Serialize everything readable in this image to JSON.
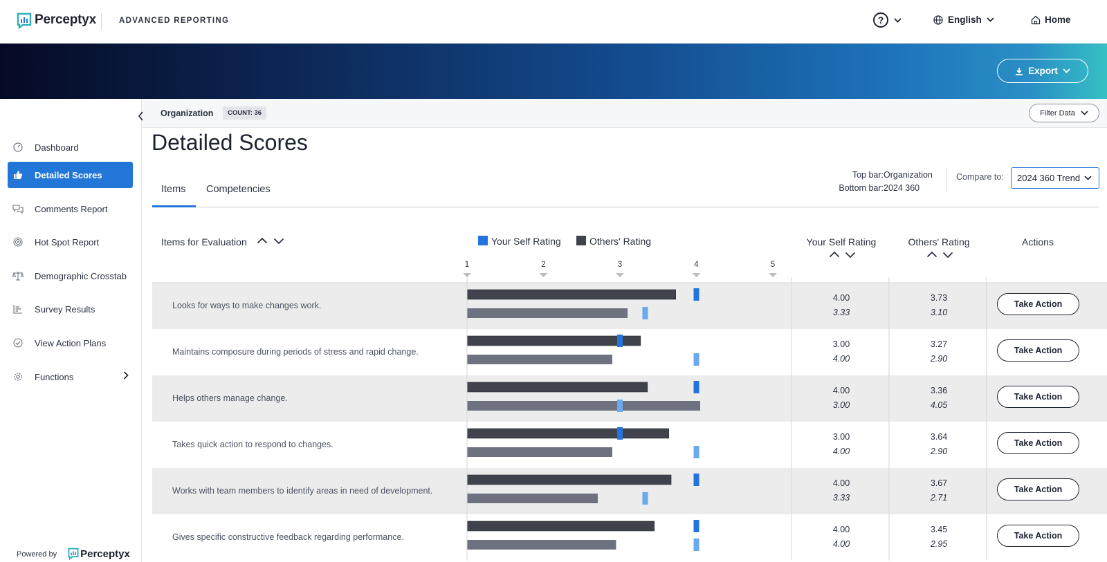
{
  "header": {
    "brand": "Perceptyx",
    "app_name": "ADVANCED REPORTING",
    "language": "English",
    "home": "Home"
  },
  "banner": {
    "export_label": "Export"
  },
  "sidebar": {
    "items": [
      {
        "label": "Dashboard",
        "icon": "gauge-icon",
        "active": false
      },
      {
        "label": "Detailed Scores",
        "icon": "thumbs-up-icon",
        "active": true
      },
      {
        "label": "Comments Report",
        "icon": "chat-bubbles-icon",
        "active": false
      },
      {
        "label": "Hot Spot Report",
        "icon": "target-icon",
        "active": false
      },
      {
        "label": "Demographic Crosstab",
        "icon": "scales-icon",
        "active": false
      },
      {
        "label": "Survey Results",
        "icon": "bar-list-icon",
        "active": false
      },
      {
        "label": "View Action Plans",
        "icon": "check-circle-icon",
        "active": false
      },
      {
        "label": "Functions",
        "icon": "gear-icon",
        "active": false
      }
    ],
    "powered_by": "Powered by",
    "powered_brand": "Perceptyx"
  },
  "filterbar": {
    "org_label": "Organization",
    "count": "COUNT: 36",
    "filter_label": "Filter Data"
  },
  "main": {
    "title": "Detailed Scores",
    "tabs": [
      {
        "label": "Items"
      },
      {
        "label": "Competencies"
      }
    ],
    "top_bar_label": "Top bar:",
    "top_bar_value": "Organization",
    "bottom_bar_label": "Bottom bar:",
    "bottom_bar_value": "2024 360",
    "compare_label": "Compare to:",
    "compare_value": "2024 360 Trend"
  },
  "table": {
    "items_header": "Items for Evaluation",
    "legend_self": "Your Self Rating",
    "legend_others": "Others' Rating",
    "col_self": "Your Self Rating",
    "col_others": "Others' Rating",
    "col_actions": "Actions",
    "action_label": "Take Action"
  },
  "colors": {
    "self_current": "#2474dd",
    "self_compare": "#6aa9ec",
    "others_current": "#40434c",
    "others_compare": "#6e7280",
    "accent": "#2276d8"
  },
  "chart_data": {
    "type": "bar",
    "x_ticks": [
      "1",
      "2",
      "3",
      "4",
      "5"
    ],
    "xlim": [
      1,
      5
    ],
    "rows": [
      {
        "item": "Looks for ways to make changes work.",
        "self_current": "4.00",
        "self_compare": "3.33",
        "others_current": "3.73",
        "others_compare": "3.10"
      },
      {
        "item": "Maintains composure during periods of stress and rapid change.",
        "self_current": "3.00",
        "self_compare": "4.00",
        "others_current": "3.27",
        "others_compare": "2.90"
      },
      {
        "item": "Helps others manage change.",
        "self_current": "4.00",
        "self_compare": "3.00",
        "others_current": "3.36",
        "others_compare": "4.05"
      },
      {
        "item": "Takes quick action to respond to changes.",
        "self_current": "3.00",
        "self_compare": "4.00",
        "others_current": "3.64",
        "others_compare": "2.90"
      },
      {
        "item": "Works with team members to identify areas in need of development.",
        "self_current": "4.00",
        "self_compare": "3.33",
        "others_current": "3.67",
        "others_compare": "2.71"
      },
      {
        "item": "Gives specific constructive feedback regarding performance.",
        "self_current": "4.00",
        "self_compare": "4.00",
        "others_current": "3.45",
        "others_compare": "2.95"
      }
    ]
  }
}
